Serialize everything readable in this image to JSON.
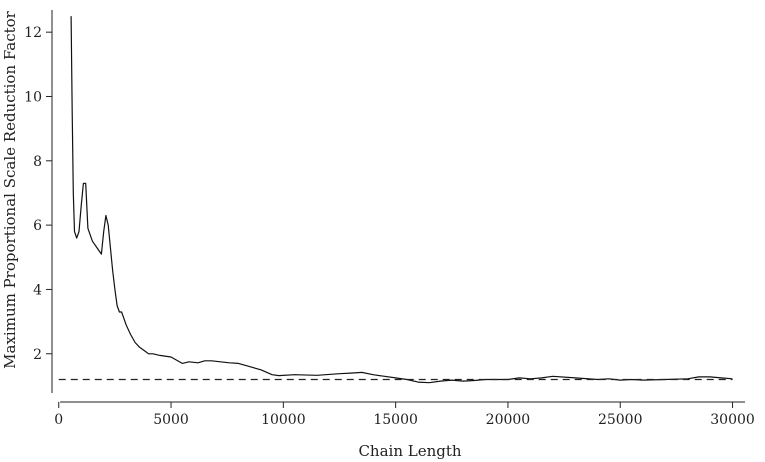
{
  "chart_data": {
    "type": "line",
    "title": "",
    "xlabel": "Chain Length",
    "ylabel": "Maximum Proportional Scale Reduction Factor",
    "xlim": [
      -300,
      31000
    ],
    "ylim": [
      0.5,
      13
    ],
    "x_ticks": [
      0,
      5000,
      10000,
      15000,
      20000,
      25000,
      30000
    ],
    "y_ticks": [
      2,
      4,
      6,
      8,
      10,
      12
    ],
    "grid": false,
    "legend": "none",
    "series": [
      {
        "style": "solid",
        "x": [
          550,
          600,
          650,
          700,
          800,
          900,
          1000,
          1100,
          1200,
          1300,
          1500,
          1700,
          1900,
          2000,
          2100,
          2200,
          2300,
          2400,
          2500,
          2600,
          2700,
          2800,
          2900,
          3000,
          3200,
          3400,
          3600,
          3800,
          4000,
          4200,
          4500,
          5000,
          5500,
          5800,
          6200,
          6500,
          6800,
          7200,
          7600,
          8000,
          8500,
          9000,
          9500,
          9800,
          10500,
          11500,
          12500,
          13000,
          13500,
          14000,
          15000,
          15500,
          16000,
          16500,
          17000,
          17500,
          18000,
          18500,
          19000,
          20000,
          20500,
          21000,
          21500,
          22000,
          23000,
          24000,
          24500,
          25000,
          25500,
          26000,
          27000,
          28000,
          28500,
          29000,
          29500,
          30000
        ],
        "y": [
          12.5,
          9.5,
          7.0,
          5.8,
          5.6,
          5.8,
          6.6,
          7.3,
          7.3,
          5.9,
          5.5,
          5.3,
          5.1,
          5.8,
          6.3,
          6.0,
          5.3,
          4.6,
          4.0,
          3.5,
          3.3,
          3.3,
          3.1,
          2.9,
          2.6,
          2.35,
          2.2,
          2.1,
          2.0,
          2.0,
          1.95,
          1.9,
          1.7,
          1.75,
          1.72,
          1.78,
          1.78,
          1.75,
          1.72,
          1.7,
          1.6,
          1.5,
          1.35,
          1.32,
          1.35,
          1.33,
          1.38,
          1.4,
          1.42,
          1.35,
          1.25,
          1.2,
          1.12,
          1.1,
          1.15,
          1.18,
          1.15,
          1.17,
          1.2,
          1.2,
          1.25,
          1.22,
          1.25,
          1.3,
          1.25,
          1.2,
          1.22,
          1.18,
          1.2,
          1.18,
          1.2,
          1.22,
          1.28,
          1.28,
          1.25,
          1.22
        ]
      },
      {
        "style": "dashed",
        "x": [
          0,
          30000
        ],
        "y": [
          1.2,
          1.2
        ]
      }
    ]
  }
}
